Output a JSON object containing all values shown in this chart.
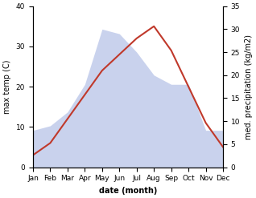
{
  "months": [
    "Jan",
    "Feb",
    "Mar",
    "Apr",
    "May",
    "Jun",
    "Jul",
    "Aug",
    "Sep",
    "Oct",
    "Nov",
    "Dec"
  ],
  "temperature": [
    3,
    6,
    12,
    18,
    24,
    28,
    32,
    35,
    29,
    20,
    11,
    5
  ],
  "precipitation": [
    8,
    9,
    12,
    18,
    30,
    29,
    25,
    20,
    18,
    18,
    8,
    8
  ],
  "temp_color": "#c0392b",
  "precip_color": "#b8c4e8",
  "temp_ylim": [
    0,
    40
  ],
  "precip_ylim": [
    0,
    35
  ],
  "xlabel": "date (month)",
  "ylabel_left": "max temp (C)",
  "ylabel_right": "med. precipitation (kg/m2)",
  "label_fontsize": 7,
  "tick_fontsize": 6.5,
  "line_width": 1.5,
  "bg_color": "#ffffff"
}
